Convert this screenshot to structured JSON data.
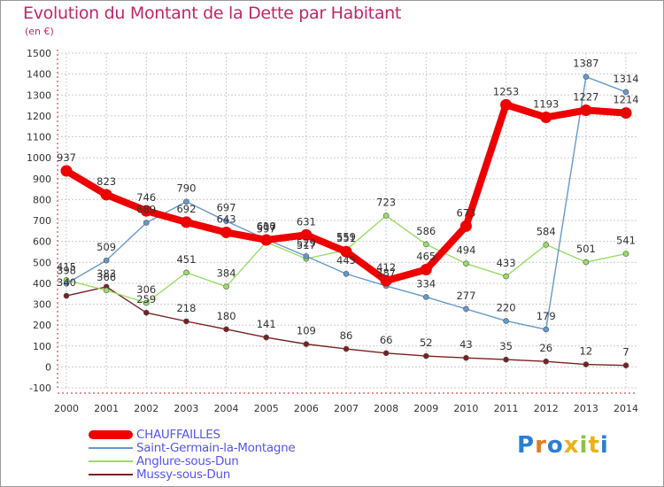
{
  "title": "Evolution du Montant de la Dette par Habitant",
  "subtitle": "(en €)",
  "logo_text": "Proxiti",
  "colors": {
    "title": "#c0266b",
    "legend_text": "#5555ee",
    "grid": "#cccccc",
    "CHAUFFAILLES": "#ee0000",
    "Saint-Germain-la-Montagne": "#6699cc",
    "Anglure-sous-Dun": "#99dd66",
    "Mussy-sous-Dun": "#772222"
  },
  "chart_data": {
    "type": "line",
    "title": "Evolution du Montant de la Dette par Habitant",
    "ylabel": "(en €)",
    "xlabel": "",
    "x": [
      "2000",
      "2001",
      "2002",
      "2003",
      "2004",
      "2005",
      "2006",
      "2007",
      "2008",
      "2009",
      "2010",
      "2011",
      "2012",
      "2013",
      "2014"
    ],
    "ylim": [
      -100,
      1500
    ],
    "yticks": [
      -100,
      0,
      100,
      200,
      300,
      400,
      500,
      600,
      700,
      800,
      900,
      1000,
      1100,
      1200,
      1300,
      1400,
      1500
    ],
    "grid": true,
    "legend": "bottom-left",
    "series": [
      {
        "name": "Mussy-sous-Dun",
        "color": "#772222",
        "values": [
          340,
          383,
          259,
          218,
          180,
          141,
          109,
          86,
          66,
          52,
          43,
          35,
          26,
          12,
          7
        ]
      },
      {
        "name": "Anglure-sous-Dun",
        "color": "#99dd66",
        "values": [
          415,
          366,
          306,
          451,
          384,
          597,
          517,
          559,
          723,
          586,
          494,
          433,
          584,
          501,
          541
        ]
      },
      {
        "name": "Saint-Germain-la-Montagne",
        "color": "#6699cc",
        "values": [
          398,
          509,
          689,
          790,
          697,
          610,
          529,
          445,
          387,
          334,
          277,
          220,
          179,
          1387,
          1314
        ]
      },
      {
        "name": "CHAUFFAILLES",
        "color": "#ee0000",
        "values": [
          937,
          823,
          746,
          692,
          643,
          607,
          631,
          551,
          412,
          465,
          673,
          1253,
          1193,
          1227,
          1214
        ]
      }
    ]
  },
  "legend_items": [
    {
      "name": "CHAUFFAILLES",
      "color": "#ee0000",
      "weight": 10
    },
    {
      "name": "Saint-Germain-la-Montagne",
      "color": "#6699cc",
      "weight": 1.5
    },
    {
      "name": "Anglure-sous-Dun",
      "color": "#99dd66",
      "weight": 1.5
    },
    {
      "name": "Mussy-sous-Dun",
      "color": "#772222",
      "weight": 1.5
    }
  ]
}
